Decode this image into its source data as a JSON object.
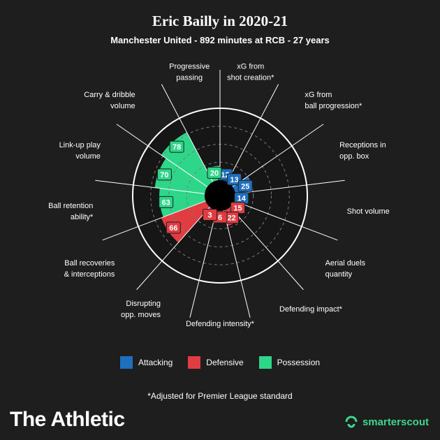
{
  "header": {
    "title": "Eric Bailly in 2020-21",
    "subtitle": "Manchester United - 892 minutes at RCB - 27 years"
  },
  "colors": {
    "attacking": "#1f6fbf",
    "defensive": "#e03c42",
    "possession": "#2ed68a",
    "background": "#1e1e1e"
  },
  "chart_data": {
    "type": "polar-bar",
    "rmax": 100,
    "rings": [
      25,
      50,
      75
    ],
    "categories": [
      {
        "label": [
          "xG from",
          "shot creation*"
        ],
        "value": 12,
        "group": "attacking"
      },
      {
        "label": [
          "xG from",
          "ball progression*"
        ],
        "value": 13,
        "group": "attacking"
      },
      {
        "label": [
          "Receptions in",
          "opp. box"
        ],
        "value": 25,
        "group": "attacking"
      },
      {
        "label": [
          "Shot volume"
        ],
        "value": 14,
        "group": "attacking"
      },
      {
        "label": [
          "Aerial duels",
          "quantity"
        ],
        "value": 15,
        "group": "defensive"
      },
      {
        "label": [
          "Defending impact*"
        ],
        "value": 22,
        "group": "defensive"
      },
      {
        "label": [
          "Defending intensity*"
        ],
        "value": 6,
        "group": "defensive"
      },
      {
        "label": [
          "Disrupting",
          "opp. moves"
        ],
        "value": 3,
        "group": "defensive"
      },
      {
        "label": [
          "Ball recoveries",
          "& interceptions"
        ],
        "value": 66,
        "group": "defensive"
      },
      {
        "label": [
          "Ball retention",
          "ability*"
        ],
        "value": 63,
        "group": "possession"
      },
      {
        "label": [
          "Link-up play",
          "volume"
        ],
        "value": 70,
        "group": "possession"
      },
      {
        "label": [
          "Carry & dribble",
          "volume"
        ],
        "value": 78,
        "group": "possession"
      },
      {
        "label": [
          "Progressive",
          "passing"
        ],
        "value": 20,
        "group": "possession"
      }
    ]
  },
  "legend": [
    {
      "label": "Attacking",
      "group": "attacking"
    },
    {
      "label": "Defensive",
      "group": "defensive"
    },
    {
      "label": "Possession",
      "group": "possession"
    }
  ],
  "footnote": "*Adjusted for Premier League standard",
  "branding": {
    "left": "The Athletic",
    "right": "smarterscout",
    "right_icon": "smarterscout-logo-icon"
  }
}
